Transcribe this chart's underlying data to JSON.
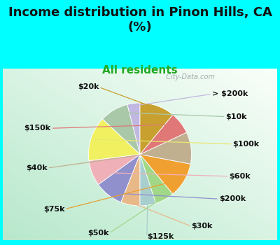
{
  "title": "Income distribution in Pinon Hills, CA\n(%)",
  "subtitle": "All residents",
  "title_fontsize": 13,
  "subtitle_fontsize": 11,
  "title_color": "#111111",
  "subtitle_color": "#22aa22",
  "background_color": "#00FFFF",
  "watermark": "  City-Data.com",
  "labels": [
    "> $200k",
    "$10k",
    "$100k",
    "$60k",
    "$200k",
    "$30k",
    "$125k",
    "$50k",
    "$75k",
    "$40k",
    "$150k",
    "$20k"
  ],
  "values": [
    4,
    9,
    14,
    8,
    9,
    6,
    5,
    6,
    11,
    10,
    7,
    11
  ],
  "colors": [
    "#c0b8e0",
    "#a8c8a8",
    "#f0f060",
    "#f0b0b8",
    "#9090cc",
    "#e8b888",
    "#a8cece",
    "#a0d888",
    "#f0a030",
    "#c0b090",
    "#e07878",
    "#c8a030"
  ],
  "startangle": 90,
  "label_fontsize": 8,
  "line_color_map": {
    "> $200k": "#c0b8e0",
    "$10k": "#a8c8a8",
    "$100k": "#e8e870",
    "$60k": "#f0b0b8",
    "$200k": "#9090cc",
    "$30k": "#e8b888",
    "$125k": "#a8cece",
    "$50k": "#a0d888",
    "$75k": "#e8a030",
    "$40k": "#c0b090",
    "$150k": "#e07878",
    "$20k": "#c8a030"
  }
}
